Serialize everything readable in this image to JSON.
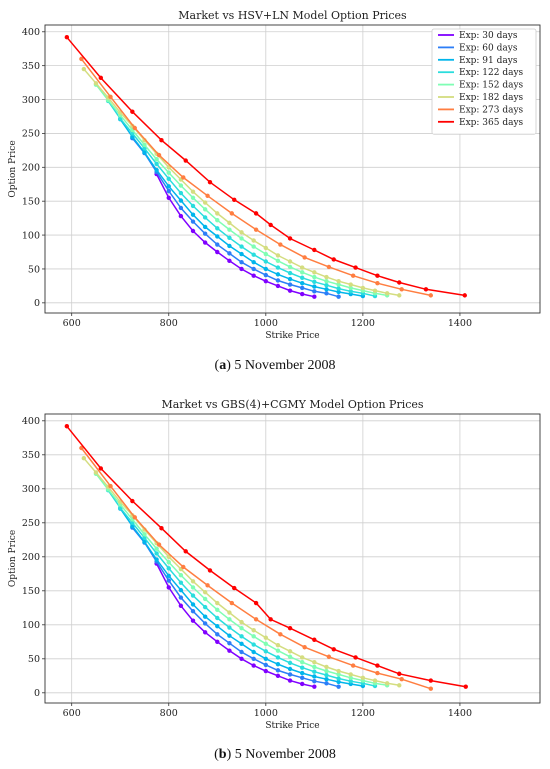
{
  "panels": [
    {
      "caption_label": "a",
      "caption_text": "5 November 2008"
    },
    {
      "caption_label": "b",
      "caption_text": "5 November 2008"
    }
  ],
  "chart_data": [
    {
      "type": "line",
      "title": "Market vs HSV+LN Model Option Prices",
      "xlabel": "Strike Price",
      "ylabel": "Option Price",
      "xlim": [
        545,
        1565
      ],
      "ylim": [
        -15,
        410
      ],
      "xticks": [
        600,
        800,
        1000,
        1200,
        1400
      ],
      "yticks": [
        0,
        50,
        100,
        150,
        200,
        250,
        300,
        350,
        400
      ],
      "grid": true,
      "legend_position": "top-right",
      "series": [
        {
          "name": "Exp: 30 days",
          "color": "#8000ff",
          "x": [
            775,
            800,
            825,
            850,
            875,
            900,
            925,
            950,
            975,
            1000,
            1025,
            1050,
            1075,
            1100
          ],
          "y": [
            190,
            155,
            128,
            106,
            89,
            75,
            62,
            50,
            40,
            32,
            25,
            18,
            13,
            9
          ]
        },
        {
          "name": "Exp: 60 days",
          "color": "#2c7ef7",
          "x": [
            725,
            750,
            775,
            800,
            825,
            850,
            875,
            900,
            925,
            950,
            975,
            1000,
            1025,
            1050,
            1075,
            1100,
            1125,
            1150
          ],
          "y": [
            243,
            221,
            193,
            165,
            140,
            120,
            102,
            86,
            73,
            60,
            50,
            41,
            33,
            27,
            22,
            17,
            14,
            9
          ]
        },
        {
          "name": "Exp: 91 days",
          "color": "#00b5eb",
          "x": [
            700,
            725,
            750,
            775,
            800,
            825,
            850,
            875,
            900,
            925,
            950,
            975,
            1000,
            1025,
            1050,
            1075,
            1100,
            1125,
            1150,
            1175,
            1200
          ],
          "y": [
            271,
            245,
            222,
            196,
            172,
            151,
            130,
            112,
            98,
            84,
            72,
            60,
            50,
            42,
            35,
            29,
            24,
            20,
            16,
            13,
            10
          ]
        },
        {
          "name": "Exp: 122 days",
          "color": "#2adddd",
          "x": [
            675,
            700,
            725,
            750,
            775,
            800,
            825,
            850,
            875,
            900,
            925,
            950,
            975,
            1000,
            1025,
            1050,
            1075,
            1100,
            1125,
            1150,
            1175,
            1200,
            1225
          ],
          "y": [
            298,
            272,
            250,
            228,
            205,
            183,
            162,
            143,
            126,
            110,
            96,
            83,
            71,
            61,
            52,
            44,
            37,
            31,
            26,
            21,
            17,
            14,
            10
          ]
        },
        {
          "name": "Exp: 152 days",
          "color": "#7ffeb4",
          "x": [
            650,
            675,
            700,
            725,
            750,
            775,
            800,
            825,
            850,
            875,
            900,
            925,
            950,
            975,
            1000,
            1025,
            1050,
            1075,
            1100,
            1125,
            1150,
            1175,
            1200,
            1225,
            1250
          ],
          "y": [
            322,
            299,
            277,
            255,
            233,
            212,
            192,
            173,
            155,
            138,
            122,
            108,
            95,
            83,
            72,
            62,
            53,
            45,
            38,
            32,
            27,
            22,
            18,
            14,
            11
          ]
        },
        {
          "name": "Exp: 182 days",
          "color": "#d4dd80",
          "x": [
            625,
            650,
            675,
            700,
            725,
            750,
            775,
            800,
            825,
            850,
            875,
            900,
            925,
            950,
            975,
            1000,
            1025,
            1050,
            1075,
            1100,
            1125,
            1150,
            1175,
            1200,
            1225,
            1250,
            1275
          ],
          "y": [
            345,
            324,
            303,
            281,
            261,
            240,
            220,
            200,
            182,
            164,
            148,
            132,
            118,
            104,
            92,
            81,
            70,
            61,
            52,
            45,
            38,
            32,
            27,
            22,
            18,
            14,
            11
          ]
        },
        {
          "name": "Exp: 273 days",
          "color": "#ff7e41",
          "x": [
            620,
            680,
            730,
            780,
            830,
            880,
            930,
            980,
            1030,
            1080,
            1130,
            1180,
            1230,
            1280,
            1340
          ],
          "y": [
            360,
            304,
            258,
            218,
            185,
            158,
            132,
            108,
            86,
            67,
            53,
            40,
            29,
            20,
            11
          ]
        },
        {
          "name": "Exp: 365 days",
          "color": "#ff0000",
          "x": [
            590,
            660,
            725,
            785,
            835,
            885,
            935,
            980,
            1010,
            1050,
            1100,
            1140,
            1185,
            1230,
            1275,
            1330,
            1410
          ],
          "y": [
            392,
            332,
            282,
            240,
            210,
            178,
            152,
            132,
            115,
            95,
            78,
            64,
            52,
            40,
            30,
            20,
            11
          ]
        }
      ]
    },
    {
      "type": "line",
      "title": "Market vs GBS(4)+CGMY Model Option Prices",
      "xlabel": "Strike Price",
      "ylabel": "Option Price",
      "xlim": [
        545,
        1565
      ],
      "ylim": [
        -15,
        410
      ],
      "xticks": [
        600,
        800,
        1000,
        1200,
        1400
      ],
      "yticks": [
        0,
        50,
        100,
        150,
        200,
        250,
        300,
        350,
        400
      ],
      "grid": true,
      "series": [
        {
          "color": "#8000ff",
          "x": [
            775,
            800,
            825,
            850,
            875,
            900,
            925,
            950,
            975,
            1000,
            1025,
            1050,
            1075,
            1100
          ],
          "y": [
            190,
            155,
            128,
            106,
            89,
            75,
            62,
            50,
            40,
            32,
            25,
            18,
            13,
            9
          ]
        },
        {
          "color": "#2c7ef7",
          "x": [
            725,
            750,
            775,
            800,
            825,
            850,
            875,
            900,
            925,
            950,
            975,
            1000,
            1025,
            1050,
            1075,
            1100,
            1125,
            1150
          ],
          "y": [
            243,
            221,
            193,
            165,
            140,
            120,
            102,
            86,
            73,
            60,
            50,
            41,
            33,
            27,
            22,
            17,
            14,
            9
          ]
        },
        {
          "color": "#00b5eb",
          "x": [
            700,
            725,
            750,
            775,
            800,
            825,
            850,
            875,
            900,
            925,
            950,
            975,
            1000,
            1025,
            1050,
            1075,
            1100,
            1125,
            1150,
            1175,
            1200
          ],
          "y": [
            271,
            245,
            222,
            196,
            172,
            151,
            130,
            112,
            98,
            84,
            72,
            60,
            50,
            42,
            35,
            29,
            24,
            20,
            16,
            13,
            10
          ]
        },
        {
          "color": "#2adddd",
          "x": [
            675,
            700,
            725,
            750,
            775,
            800,
            825,
            850,
            875,
            900,
            925,
            950,
            975,
            1000,
            1025,
            1050,
            1075,
            1100,
            1125,
            1150,
            1175,
            1200,
            1225
          ],
          "y": [
            298,
            272,
            250,
            228,
            205,
            183,
            162,
            143,
            126,
            110,
            96,
            83,
            71,
            61,
            52,
            44,
            37,
            31,
            26,
            21,
            17,
            14,
            10
          ]
        },
        {
          "color": "#7ffeb4",
          "x": [
            650,
            675,
            700,
            725,
            750,
            775,
            800,
            825,
            850,
            875,
            900,
            925,
            950,
            975,
            1000,
            1025,
            1050,
            1075,
            1100,
            1125,
            1150,
            1175,
            1200,
            1225,
            1250
          ],
          "y": [
            322,
            299,
            277,
            255,
            233,
            212,
            192,
            173,
            155,
            138,
            122,
            108,
            95,
            83,
            72,
            62,
            53,
            45,
            38,
            32,
            27,
            22,
            18,
            14,
            11
          ]
        },
        {
          "color": "#d4dd80",
          "x": [
            625,
            650,
            675,
            700,
            725,
            750,
            775,
            800,
            825,
            850,
            875,
            900,
            925,
            950,
            975,
            1000,
            1025,
            1050,
            1075,
            1100,
            1125,
            1150,
            1175,
            1200,
            1225,
            1250,
            1275
          ],
          "y": [
            345,
            324,
            303,
            281,
            261,
            240,
            220,
            200,
            182,
            164,
            148,
            132,
            118,
            104,
            92,
            81,
            70,
            61,
            52,
            45,
            38,
            32,
            27,
            22,
            18,
            14,
            11
          ]
        },
        {
          "color": "#ff7e41",
          "x": [
            620,
            680,
            730,
            780,
            830,
            880,
            930,
            980,
            1030,
            1080,
            1130,
            1180,
            1230,
            1280,
            1340
          ],
          "y": [
            360,
            304,
            258,
            218,
            185,
            158,
            132,
            108,
            86,
            67,
            53,
            40,
            29,
            20,
            6
          ]
        },
        {
          "color": "#ff0000",
          "x": [
            590,
            660,
            725,
            785,
            835,
            885,
            935,
            980,
            1010,
            1050,
            1100,
            1140,
            1185,
            1230,
            1275,
            1340,
            1412
          ],
          "y": [
            392,
            330,
            282,
            242,
            208,
            180,
            154,
            132,
            108,
            95,
            78,
            64,
            52,
            40,
            28,
            18,
            9
          ]
        }
      ]
    }
  ]
}
